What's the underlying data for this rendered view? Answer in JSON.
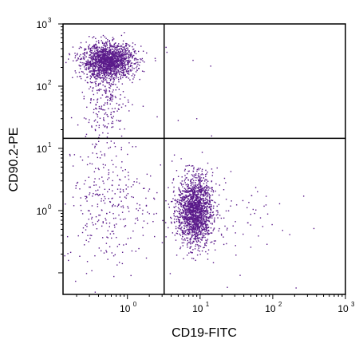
{
  "chart_data": {
    "type": "scatter",
    "xlabel": "CD19-FITC",
    "ylabel": "CD90.2-PE",
    "x_scale": "log",
    "y_scale": "log",
    "xlim": [
      0.13,
      1000
    ],
    "ylim": [
      0.045,
      1000
    ],
    "x_ticks": [
      {
        "value": 1,
        "base": "10",
        "exp": "0"
      },
      {
        "value": 10,
        "base": "10",
        "exp": "1"
      },
      {
        "value": 100,
        "base": "10",
        "exp": "2"
      },
      {
        "value": 1000,
        "base": "10",
        "exp": "3"
      }
    ],
    "y_ticks": [
      {
        "value": 1,
        "base": "10",
        "exp": "0"
      },
      {
        "value": 10,
        "base": "10",
        "exp": "1"
      },
      {
        "value": 100,
        "base": "10",
        "exp": "2"
      },
      {
        "value": 1000,
        "base": "10",
        "exp": "3"
      }
    ],
    "gates": {
      "x": 3.2,
      "y": 14.5
    },
    "point_color": "#5a1a8a",
    "populations": [
      {
        "description": "T cells (CD90.2+ CD19-)",
        "count": 1600,
        "x_center": 0.55,
        "x_spread_log": 0.18,
        "y_center": 250,
        "y_spread_log": 0.14
      },
      {
        "description": "T cell tail",
        "count": 220,
        "x_center": 0.5,
        "x_spread_log": 0.15,
        "y_center": 60,
        "y_spread_log": 0.3
      },
      {
        "description": "B cells (CD19+ CD90.2-)",
        "count": 1700,
        "x_center": 8.5,
        "x_spread_log": 0.12,
        "y_center": 1.0,
        "y_spread_log": 0.28
      },
      {
        "description": "Double negative events",
        "count": 320,
        "x_center": 0.55,
        "x_spread_log": 0.3,
        "y_center": 1.5,
        "y_spread_log": 0.55
      },
      {
        "description": "Scattered events",
        "count": 90,
        "x_center": 20,
        "x_spread_log": 0.45,
        "y_center": 0.8,
        "y_spread_log": 0.45
      }
    ],
    "extra_points": [
      {
        "x": 3.4,
        "y": 420
      },
      {
        "x": 3.5,
        "y": 350
      },
      {
        "x": 8.0,
        "y": 260
      },
      {
        "x": 14,
        "y": 210
      },
      {
        "x": 5.0,
        "y": 28
      },
      {
        "x": 9.0,
        "y": 30
      }
    ]
  }
}
